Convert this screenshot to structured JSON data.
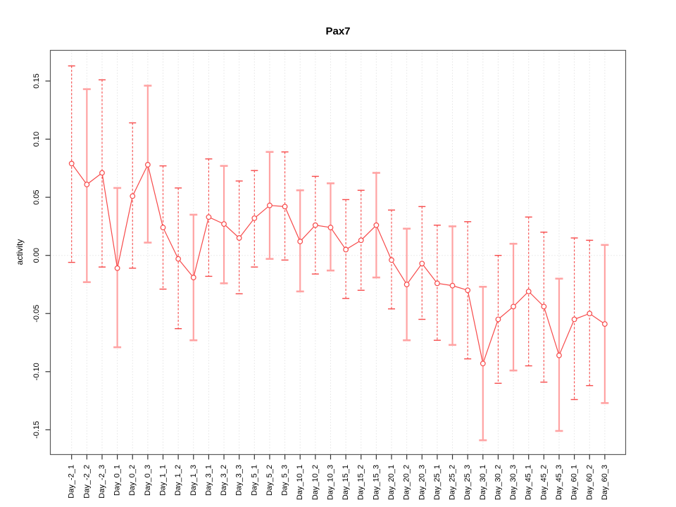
{
  "figure": {
    "title": "Pax7",
    "ylabel": "activity"
  },
  "chart_data": {
    "type": "scatter",
    "title": "Pax7",
    "xlabel": "",
    "ylabel": "activity",
    "ylim": [
      -0.17,
      0.17
    ],
    "yticks": [
      0.15,
      0.1,
      0.05,
      0.0,
      -0.05,
      -0.1,
      -0.15
    ],
    "grid": "dotted vertical line at every x position, dotted horizontal line at y=0",
    "legend": "none",
    "marker": "open-circle",
    "line": "points connected by segments, with error bars (whisker caps)",
    "categories": [
      "Day_-2_1",
      "Day_-2_2",
      "Day_-2_3",
      "Day_0_1",
      "Day_0_2",
      "Day_0_3",
      "Day_1_1",
      "Day_1_2",
      "Day_1_3",
      "Day_3_1",
      "Day_3_2",
      "Day_3_3",
      "Day_5_1",
      "Day_5_2",
      "Day_5_3",
      "Day_10_1",
      "Day_10_2",
      "Day_10_3",
      "Day_15_1",
      "Day_15_2",
      "Day_15_3",
      "Day_20_1",
      "Day_20_2",
      "Day_20_3",
      "Day_25_1",
      "Day_25_2",
      "Day_25_3",
      "Day_30_1",
      "Day_30_2",
      "Day_30_3",
      "Day_45_1",
      "Day_45_2",
      "Day_45_3",
      "Day_60_1",
      "Day_60_2",
      "Day_60_3"
    ],
    "series": [
      {
        "name": "activity",
        "values": [
          0.079,
          0.061,
          0.071,
          -0.011,
          0.051,
          0.078,
          0.024,
          -0.003,
          -0.019,
          0.033,
          0.027,
          0.015,
          0.032,
          0.043,
          0.042,
          0.012,
          0.026,
          0.024,
          0.005,
          0.013,
          0.026,
          -0.004,
          -0.025,
          -0.007,
          -0.024,
          -0.026,
          -0.03,
          -0.093,
          -0.055,
          -0.044,
          -0.031,
          -0.044,
          -0.086,
          -0.055,
          -0.05,
          -0.059
        ],
        "lower": [
          -0.006,
          -0.023,
          -0.01,
          -0.079,
          -0.011,
          0.011,
          -0.029,
          -0.063,
          -0.073,
          -0.018,
          -0.024,
          -0.033,
          -0.01,
          -0.003,
          -0.004,
          -0.031,
          -0.016,
          -0.013,
          -0.037,
          -0.03,
          -0.019,
          -0.046,
          -0.073,
          -0.055,
          -0.073,
          -0.077,
          -0.089,
          -0.159,
          -0.11,
          -0.099,
          -0.095,
          -0.109,
          -0.151,
          -0.124,
          -0.112,
          -0.127
        ],
        "upper": [
          0.163,
          0.143,
          0.151,
          0.058,
          0.114,
          0.146,
          0.077,
          0.058,
          0.035,
          0.083,
          0.077,
          0.064,
          0.073,
          0.089,
          0.089,
          0.056,
          0.068,
          0.062,
          0.048,
          0.056,
          0.071,
          0.039,
          0.023,
          0.042,
          0.026,
          0.025,
          0.029,
          -0.027,
          0.0,
          0.01,
          0.033,
          0.02,
          -0.02,
          0.015,
          0.013,
          0.009
        ]
      }
    ],
    "bar_styles": [
      "d",
      "s",
      "d",
      "s",
      "d",
      "s",
      "d",
      "d",
      "s",
      "d",
      "s",
      "d",
      "d",
      "s",
      "d",
      "s",
      "d",
      "s",
      "d",
      "d",
      "s",
      "d",
      "s",
      "d",
      "d",
      "s",
      "d",
      "s",
      "d",
      "s",
      "d",
      "d",
      "s",
      "d",
      "d",
      "s"
    ],
    "colors": {
      "series": "#f74a4a",
      "bar_alt": "#ffa3a3",
      "grid": "#d6d6d6",
      "frame": "#5a5a5a",
      "tick": "#333333"
    }
  }
}
